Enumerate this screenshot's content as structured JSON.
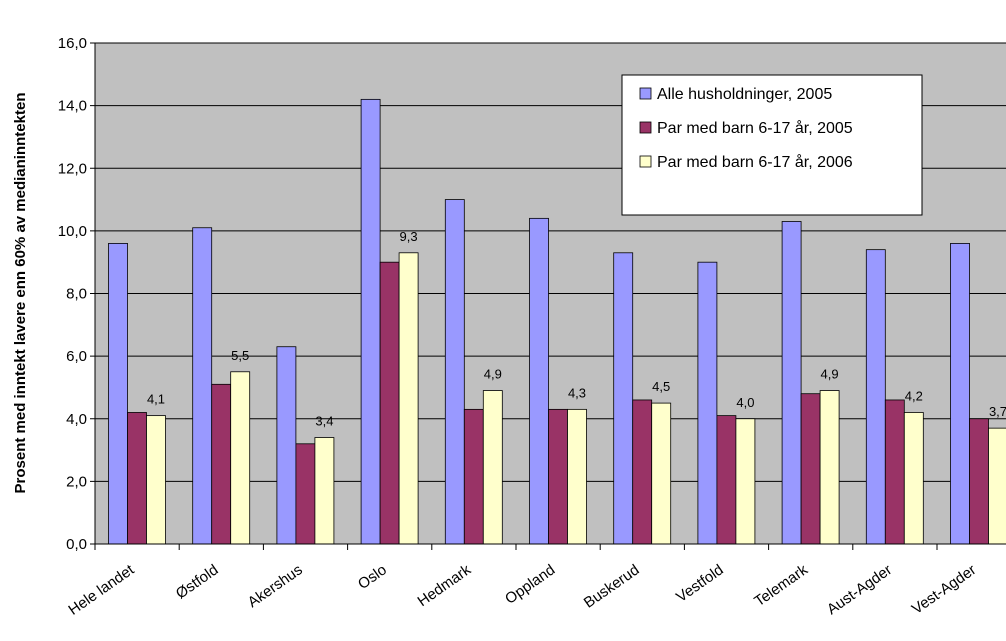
{
  "chart_data": {
    "type": "bar",
    "ylabel": "Prosent med inntekt lavere enn 60% av medianinntekten",
    "ylim": [
      0,
      16
    ],
    "yticks": [
      "0,0",
      "2,0",
      "4,0",
      "6,0",
      "8,0",
      "10,0",
      "12,0",
      "14,0",
      "16,0"
    ],
    "grid": true,
    "legend_position": "top-right",
    "categories": [
      "Hele landet",
      "Østfold",
      "Akershus",
      "Oslo",
      "Hedmark",
      "Oppland",
      "Buskerud",
      "Vestfold",
      "Telemark",
      "Aust-Agder",
      "Vest-Agder"
    ],
    "series": [
      {
        "name": "Alle husholdninger, 2005",
        "color": "#9999ff",
        "values": [
          9.6,
          10.1,
          6.3,
          14.2,
          11.0,
          10.4,
          9.3,
          9.0,
          10.3,
          9.4,
          9.6
        ]
      },
      {
        "name": "Par med barn 6-17 år, 2005",
        "color": "#993366",
        "values": [
          4.2,
          5.1,
          3.2,
          9.0,
          4.3,
          4.3,
          4.6,
          4.1,
          4.8,
          4.6,
          4.0
        ]
      },
      {
        "name": "Par med barn 6-17 år, 2006",
        "color": "#ffffcc",
        "values": [
          4.1,
          5.5,
          3.4,
          9.3,
          4.9,
          4.3,
          4.5,
          4.0,
          4.9,
          4.2,
          3.7
        ]
      }
    ],
    "data_labels": [
      "4,1",
      "5,5",
      "3,4",
      "9,3",
      "4,9",
      "4,3",
      "4,5",
      "4,0",
      "4,9",
      "4,2",
      "3,7"
    ]
  }
}
